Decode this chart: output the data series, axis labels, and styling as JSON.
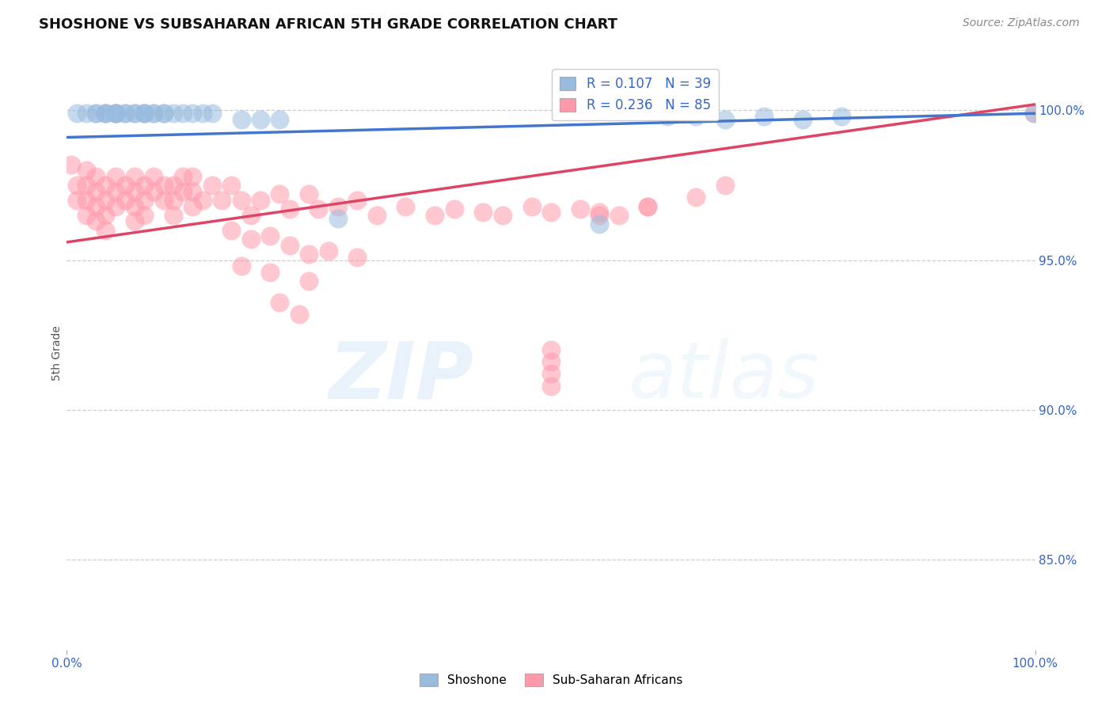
{
  "title": "SHOSHONE VS SUBSAHARAN AFRICAN 5TH GRADE CORRELATION CHART",
  "source": "Source: ZipAtlas.com",
  "ylabel": "5th Grade",
  "ytick_labels": [
    "85.0%",
    "90.0%",
    "95.0%",
    "100.0%"
  ],
  "ytick_values": [
    0.85,
    0.9,
    0.95,
    1.0
  ],
  "xlim": [
    0.0,
    1.0
  ],
  "ylim": [
    0.82,
    1.018
  ],
  "shoshone_R": 0.107,
  "shoshone_N": 39,
  "subsaharan_R": 0.236,
  "subsaharan_N": 85,
  "shoshone_color": "#99BBDD",
  "subsaharan_color": "#FF99AA",
  "shoshone_line_color": "#4477CC",
  "subsaharan_line_color": "#DD4466",
  "shoshone_line": [
    0.0,
    1.0,
    0.991,
    0.999
  ],
  "subsaharan_line": [
    0.0,
    1.0,
    0.956,
    1.002
  ],
  "shoshone_x": [
    0.01,
    0.02,
    0.03,
    0.03,
    0.04,
    0.04,
    0.04,
    0.05,
    0.05,
    0.05,
    0.05,
    0.06,
    0.06,
    0.07,
    0.07,
    0.08,
    0.08,
    0.08,
    0.09,
    0.09,
    0.1,
    0.1,
    0.11,
    0.12,
    0.13,
    0.14,
    0.15,
    0.18,
    0.2,
    0.22,
    0.28,
    0.55,
    0.62,
    0.65,
    0.68,
    0.72,
    0.76,
    0.8,
    0.999
  ],
  "shoshone_y": [
    0.999,
    0.999,
    0.999,
    0.999,
    0.999,
    0.999,
    0.999,
    0.999,
    0.999,
    0.999,
    0.999,
    0.999,
    0.999,
    0.999,
    0.999,
    0.999,
    0.999,
    0.999,
    0.999,
    0.999,
    0.999,
    0.999,
    0.999,
    0.999,
    0.999,
    0.999,
    0.999,
    0.997,
    0.997,
    0.997,
    0.964,
    0.962,
    0.998,
    0.998,
    0.997,
    0.998,
    0.997,
    0.998,
    0.999
  ],
  "subsaharan_x": [
    0.005,
    0.01,
    0.01,
    0.02,
    0.02,
    0.02,
    0.02,
    0.03,
    0.03,
    0.03,
    0.03,
    0.04,
    0.04,
    0.04,
    0.04,
    0.05,
    0.05,
    0.05,
    0.06,
    0.06,
    0.07,
    0.07,
    0.07,
    0.07,
    0.08,
    0.08,
    0.08,
    0.09,
    0.09,
    0.1,
    0.1,
    0.11,
    0.11,
    0.11,
    0.12,
    0.12,
    0.13,
    0.13,
    0.13,
    0.14,
    0.15,
    0.16,
    0.17,
    0.18,
    0.19,
    0.2,
    0.22,
    0.23,
    0.25,
    0.26,
    0.28,
    0.3,
    0.32,
    0.35,
    0.38,
    0.4,
    0.43,
    0.45,
    0.48,
    0.5,
    0.53,
    0.55,
    0.57,
    0.6,
    0.17,
    0.19,
    0.21,
    0.23,
    0.25,
    0.27,
    0.3,
    0.18,
    0.21,
    0.25,
    0.5,
    0.5,
    0.5,
    0.5,
    0.22,
    0.24,
    0.55,
    0.6,
    0.65,
    0.68,
    0.999
  ],
  "subsaharan_y": [
    0.982,
    0.975,
    0.97,
    0.98,
    0.975,
    0.97,
    0.965,
    0.978,
    0.973,
    0.968,
    0.963,
    0.975,
    0.97,
    0.965,
    0.96,
    0.978,
    0.973,
    0.968,
    0.975,
    0.97,
    0.978,
    0.973,
    0.968,
    0.963,
    0.975,
    0.97,
    0.965,
    0.978,
    0.973,
    0.975,
    0.97,
    0.975,
    0.97,
    0.965,
    0.978,
    0.973,
    0.978,
    0.973,
    0.968,
    0.97,
    0.975,
    0.97,
    0.975,
    0.97,
    0.965,
    0.97,
    0.972,
    0.967,
    0.972,
    0.967,
    0.968,
    0.97,
    0.965,
    0.968,
    0.965,
    0.967,
    0.966,
    0.965,
    0.968,
    0.966,
    0.967,
    0.966,
    0.965,
    0.968,
    0.96,
    0.957,
    0.958,
    0.955,
    0.952,
    0.953,
    0.951,
    0.948,
    0.946,
    0.943,
    0.92,
    0.916,
    0.912,
    0.908,
    0.936,
    0.932,
    0.965,
    0.968,
    0.971,
    0.975,
    0.999
  ],
  "watermark_zip": "ZIP",
  "watermark_atlas": "atlas",
  "background_color": "#FFFFFF",
  "grid_color": "#CCCCCC"
}
